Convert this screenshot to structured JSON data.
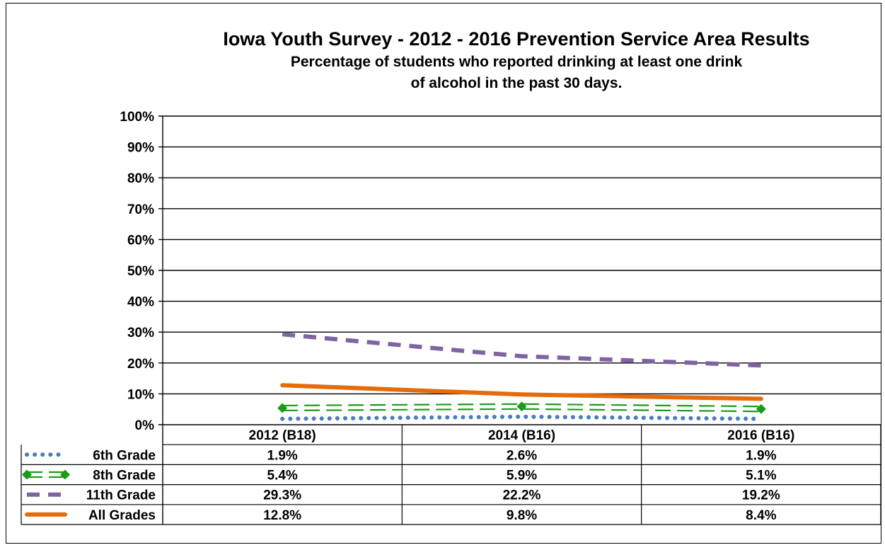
{
  "title": {
    "line1": "Iowa Youth Survey - 2012 - 2016 Prevention Service Area Results",
    "line2": "Percentage of students who reported drinking at least one drink",
    "line3": "of alcohol in the past 30 days."
  },
  "chart_data": {
    "type": "line",
    "title": "Iowa Youth Survey - 2012 - 2016 Prevention Service Area Results",
    "subtitle": "Percentage of students who reported drinking at least one drink of alcohol in the past 30 days.",
    "categories": [
      "2012 (B18)",
      "2014 (B16)",
      "2016 (B16)"
    ],
    "ylim": [
      0,
      100
    ],
    "yticks": [
      "0%",
      "10%",
      "20%",
      "30%",
      "40%",
      "50%",
      "60%",
      "70%",
      "80%",
      "90%",
      "100%"
    ],
    "grid": true,
    "legend": "data-table-below",
    "series": [
      {
        "name": "6th Grade",
        "values": [
          1.9,
          2.6,
          1.9
        ],
        "labels": [
          "1.9%",
          "2.6%",
          "1.9%"
        ],
        "color": "#4a7ebb",
        "style": "dotted"
      },
      {
        "name": "8th Grade",
        "values": [
          5.4,
          5.9,
          5.1
        ],
        "labels": [
          "5.4%",
          "5.9%",
          "5.1%"
        ],
        "color": "#1a9b1a",
        "style": "double-dash-diamond"
      },
      {
        "name": "11th Grade",
        "values": [
          29.3,
          22.2,
          19.2
        ],
        "labels": [
          "29.3%",
          "22.2%",
          "19.2%"
        ],
        "color": "#8064a2",
        "style": "long-dash"
      },
      {
        "name": "All Grades",
        "values": [
          12.8,
          9.8,
          8.4
        ],
        "labels": [
          "12.8%",
          "9.8%",
          "8.4%"
        ],
        "color": "#e46c0a",
        "style": "solid-thick"
      }
    ]
  }
}
